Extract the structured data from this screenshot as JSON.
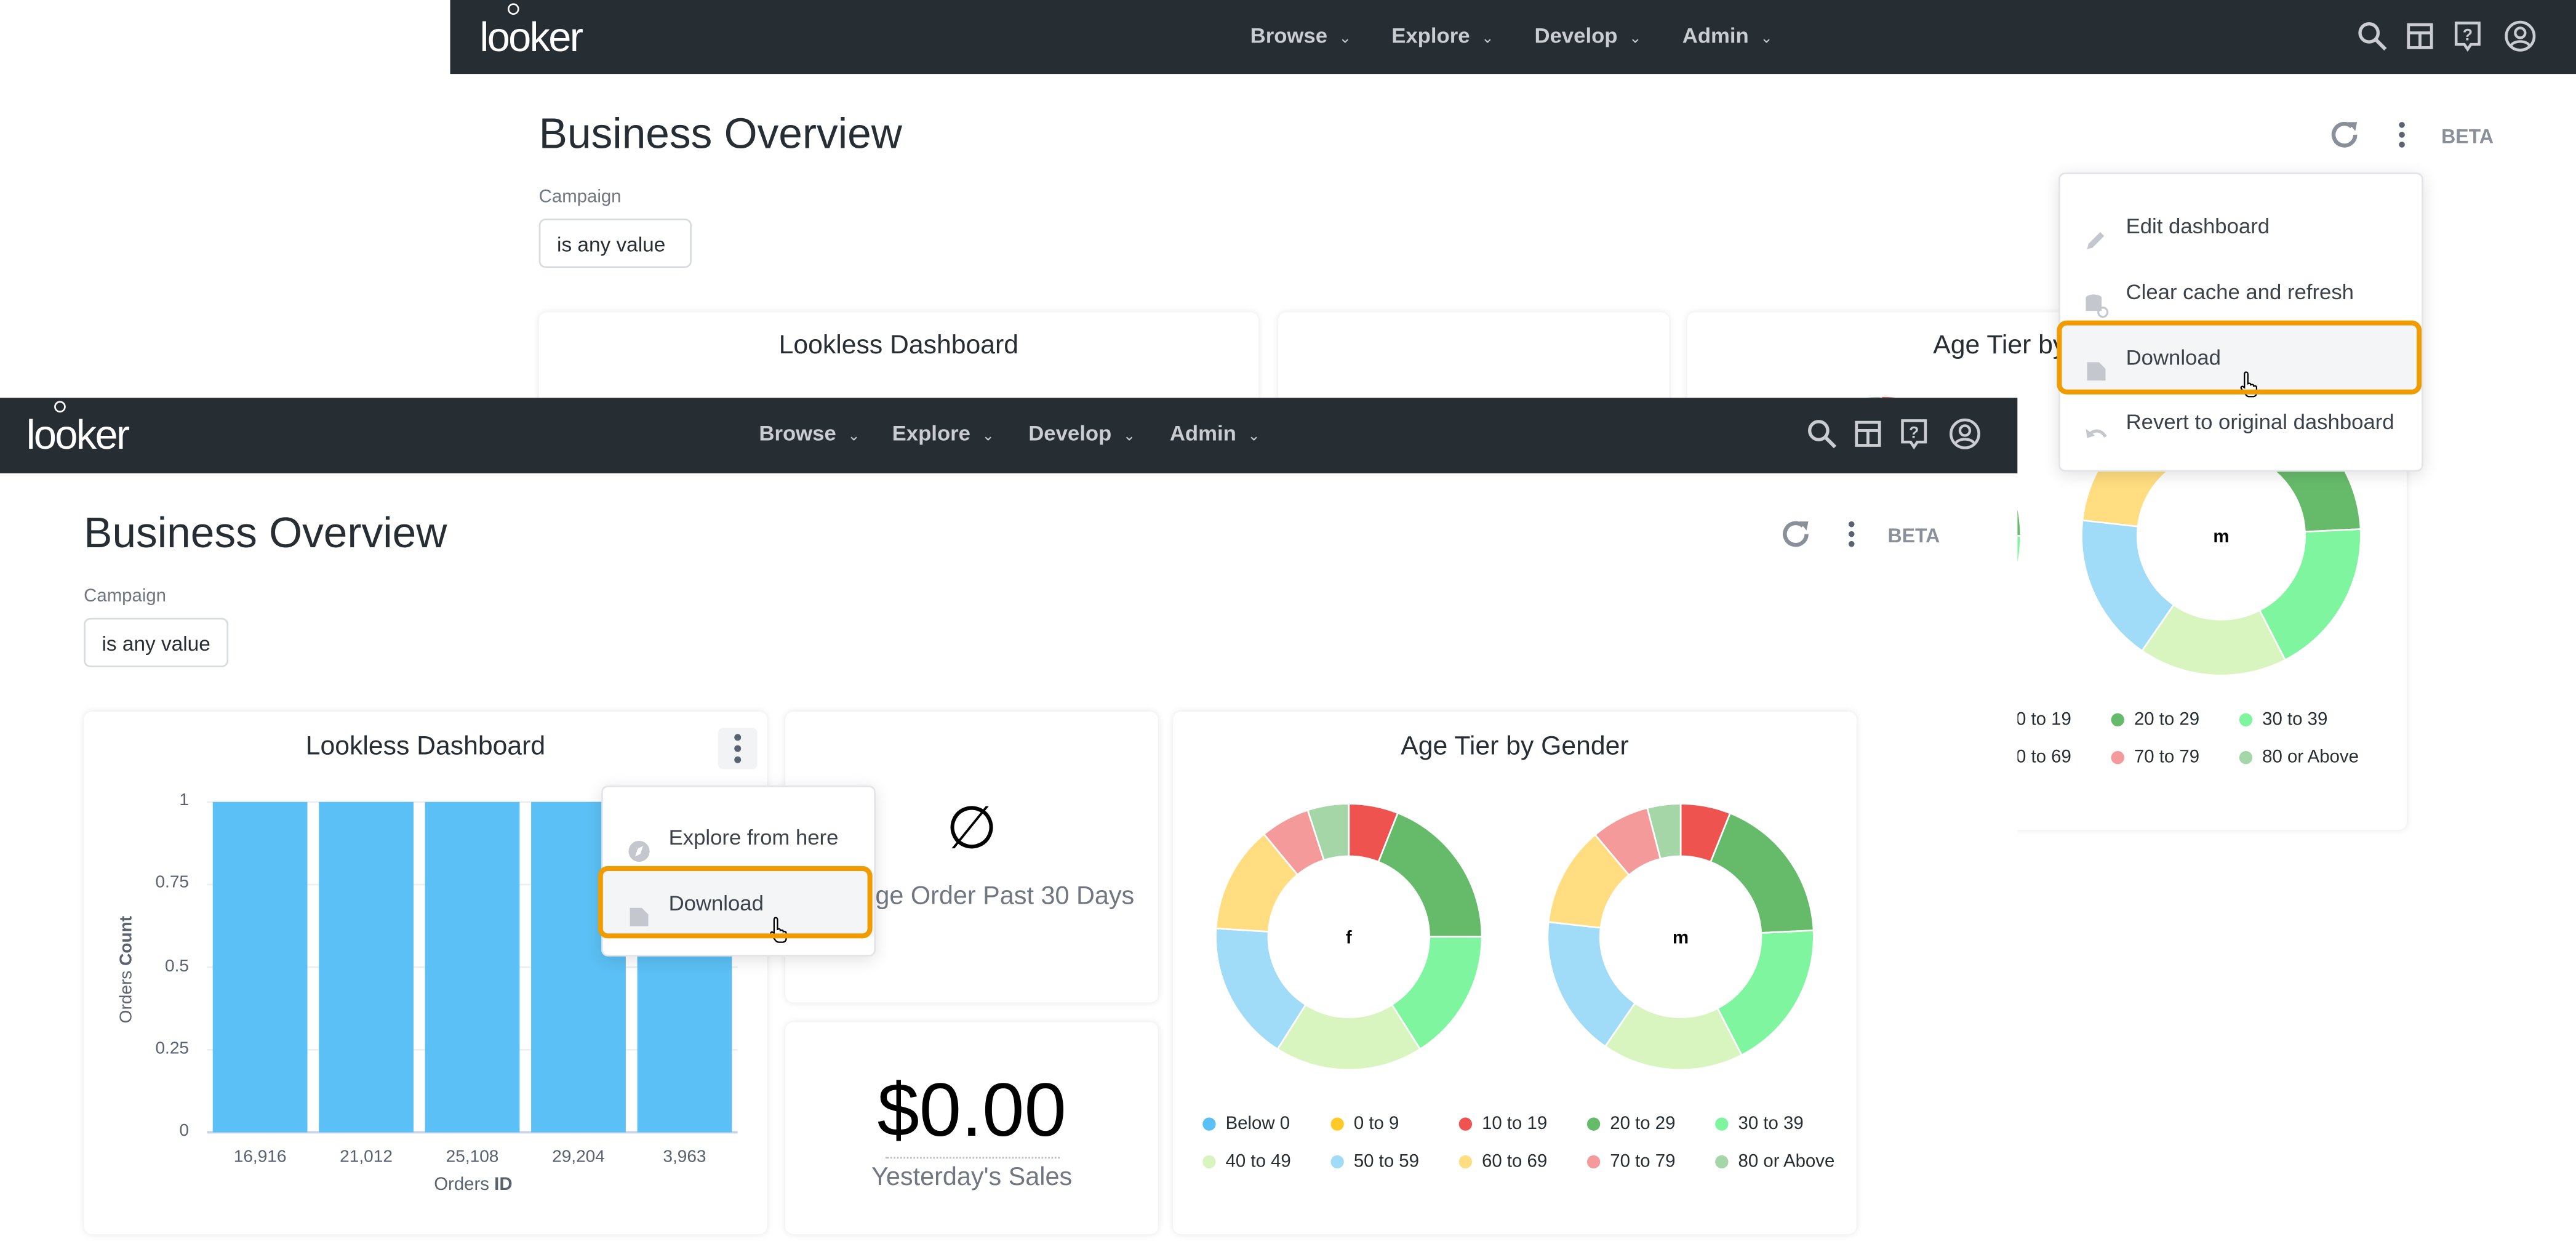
{
  "app": {
    "logo": "looker"
  },
  "nav": {
    "items": [
      {
        "label": "Browse"
      },
      {
        "label": "Explore"
      },
      {
        "label": "Develop"
      },
      {
        "label": "Admin"
      }
    ],
    "icons": [
      "search-icon",
      "boards-icon",
      "help-icon",
      "user-account-icon"
    ]
  },
  "dashboard": {
    "title": "Business Overview",
    "beta": "BETA",
    "filter": {
      "label": "Campaign",
      "value": "is any value"
    }
  },
  "dashboard_menu": {
    "items": [
      {
        "label": "Edit dashboard",
        "icon": "pencil-icon"
      },
      {
        "label": "Clear cache and refresh",
        "icon": "database-refresh-icon"
      },
      {
        "label": "Download",
        "icon": "file-icon",
        "highlighted": true
      },
      {
        "label": "Revert to original dashboard",
        "icon": "undo-icon"
      }
    ]
  },
  "tile_menu": {
    "items": [
      {
        "label": "Explore from here",
        "icon": "compass-icon"
      },
      {
        "label": "Download",
        "icon": "file-icon",
        "highlighted": true
      }
    ]
  },
  "tiles": {
    "lookless": {
      "title": "Lookless Dashboard"
    },
    "avg_order": {
      "value": "∅",
      "label": "Average Order Past 30 Days"
    },
    "yesterday": {
      "value": "$0.00",
      "label": "Yesterday's Sales"
    },
    "age_tier": {
      "title": "Age Tier by Gender",
      "back_title": "Age Tier by"
    }
  },
  "highlight_color": "#f09c00",
  "chart_data": [
    {
      "type": "bar",
      "title": "Lookless Dashboard",
      "categories": [
        "16,916",
        "21,012",
        "25,108",
        "29,204",
        "3,963"
      ],
      "values": [
        1,
        1,
        1,
        1,
        1
      ],
      "xlabel": "Orders ID",
      "xlabel_parts": [
        "Orders ",
        "ID"
      ],
      "ylabel": "Orders Count",
      "ylabel_parts": [
        "Orders ",
        "Count"
      ],
      "ylim": [
        0,
        1
      ],
      "yticks": [
        "0",
        "0.25",
        "0.5",
        "0.75",
        "1"
      ],
      "grid": true,
      "color": "#5bc0f5"
    },
    {
      "type": "pie",
      "title": "Age Tier by Gender",
      "donut": true,
      "categories": [
        "Below 0",
        "0 to 9",
        "10 to 19",
        "20 to 29",
        "30 to 39",
        "40 to 49",
        "50 to 59",
        "60 to 69",
        "70 to 79",
        "80 or Above"
      ],
      "colors": [
        "#5bc0f5",
        "#ffca28",
        "#ef5350",
        "#66bb6a",
        "#80f5a0",
        "#d8f5c0",
        "#a0dbf8",
        "#ffdd80",
        "#f59a9a",
        "#a5d6a7"
      ],
      "series": [
        {
          "name": "f",
          "values": [
            0,
            0,
            6,
            19,
            16,
            18,
            17,
            13,
            6,
            5
          ]
        },
        {
          "name": "m",
          "values": [
            0,
            0,
            6,
            18,
            18,
            17,
            17,
            12,
            7,
            4
          ]
        }
      ],
      "legend": "bottom"
    }
  ]
}
